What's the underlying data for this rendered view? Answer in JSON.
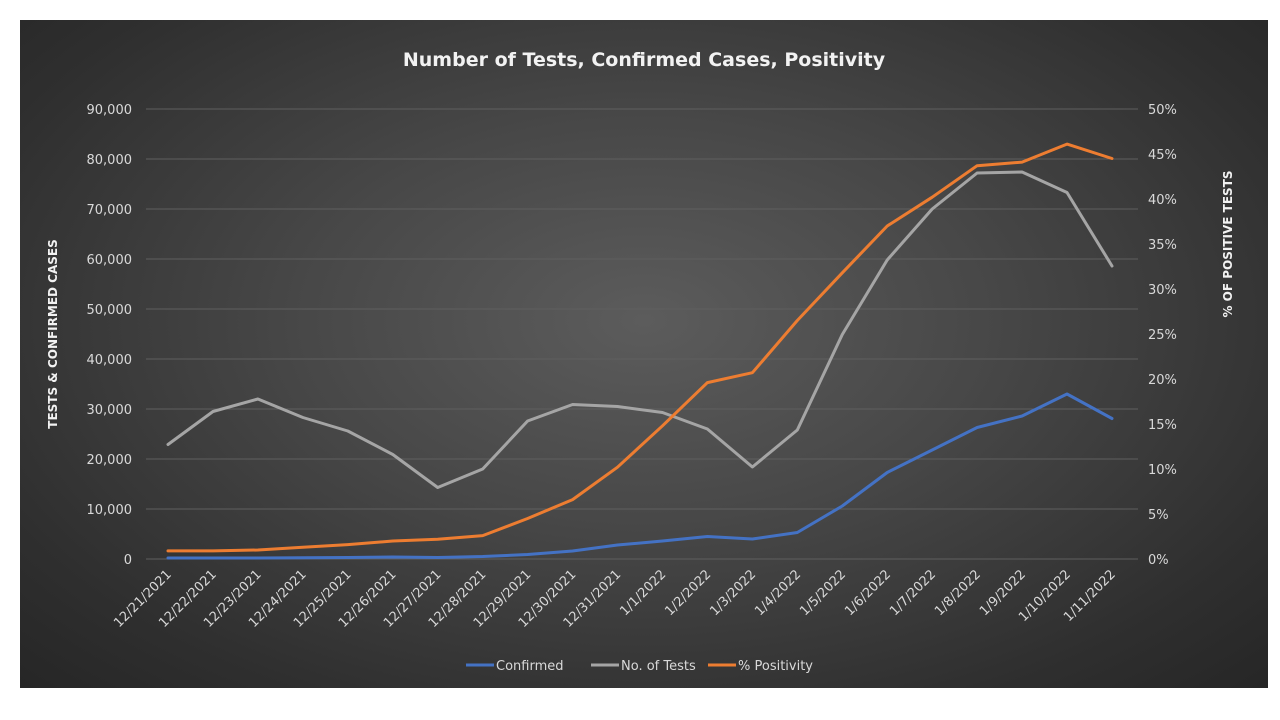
{
  "chart_data": {
    "type": "line",
    "title": "Number of Tests, Confirmed Cases, Positivity",
    "ylabel": "TESTS & CONFIRMED CASES",
    "y2label": "% OF POSITIVE TESTS",
    "ylim": [
      0,
      90000
    ],
    "y2lim": [
      0,
      50
    ],
    "yticks": [
      "0",
      "10,000",
      "20,000",
      "30,000",
      "40,000",
      "50,000",
      "60,000",
      "70,000",
      "80,000",
      "90,000"
    ],
    "y2ticks": [
      "0%",
      "5%",
      "10%",
      "15%",
      "20%",
      "25%",
      "30%",
      "35%",
      "40%",
      "45%",
      "50%"
    ],
    "grid": true,
    "legend_position": "bottom",
    "categories": [
      "12/21/2021",
      "12/22/2021",
      "12/23/2021",
      "12/24/2021",
      "12/25/2021",
      "12/26/2021",
      "12/27/2021",
      "12/28/2021",
      "12/29/2021",
      "12/30/2021",
      "12/31/2021",
      "1/1/2022",
      "1/2/2022",
      "1/3/2022",
      "1/4/2022",
      "1/5/2022",
      "1/6/2022",
      "1/7/2022",
      "1/8/2022",
      "1/9/2022",
      "1/10/2022",
      "1/11/2022"
    ],
    "series": [
      {
        "name": "Confirmed",
        "color": "#4472c4",
        "axis": "left",
        "values": [
          200,
          200,
          200,
          250,
          300,
          400,
          300,
          500,
          900,
          1600,
          2800,
          3600,
          4500,
          4000,
          5300,
          10600,
          17300,
          21800,
          26300,
          28600,
          33000,
          28100
        ]
      },
      {
        "name": "No. of Tests",
        "color": "#a5a5a5",
        "axis": "left",
        "values": [
          22900,
          29500,
          32000,
          28300,
          25600,
          20900,
          14300,
          18000,
          27600,
          30900,
          30500,
          29300,
          26000,
          18400,
          25800,
          44900,
          59800,
          70000,
          77200,
          77400,
          73300,
          58600
        ]
      },
      {
        "name": "% Positivity",
        "color": "#ed7d31",
        "axis": "right",
        "values": [
          0.9,
          0.9,
          1.0,
          1.3,
          1.6,
          2.0,
          2.2,
          2.6,
          4.5,
          6.6,
          10.2,
          14.8,
          19.6,
          20.7,
          26.5,
          31.8,
          37.0,
          40.2,
          43.7,
          44.1,
          46.1,
          44.5
        ]
      }
    ]
  }
}
